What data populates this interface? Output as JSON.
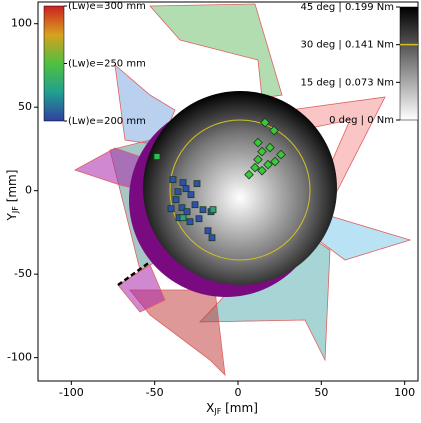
{
  "chart_data": {
    "type": "scatter",
    "xlabel": {
      "main": "X",
      "sub": "JF",
      "unit": " [mm]"
    },
    "ylabel": {
      "main": "Y",
      "sub": "JF",
      "unit": " [mm]"
    },
    "xlim": [
      -120,
      108
    ],
    "ylim": [
      -114,
      113
    ],
    "xticks": [
      -100,
      -50,
      0,
      50,
      100
    ],
    "yticks": [
      -100,
      -50,
      0,
      50,
      100
    ],
    "x": [
      -39,
      -33,
      -24.6,
      -36,
      -31.2,
      -28.2,
      -37.2,
      -33.6,
      -25.8,
      -21,
      -16.2,
      -30.6,
      -35.4,
      -28.8,
      -23.4,
      -18,
      -15.6,
      -40.2,
      16.2,
      21.6,
      12,
      19.2,
      25.8,
      14.4,
      12,
      18,
      22.2,
      10.2,
      14.4,
      6.6,
      -48.6,
      -33,
      -15
    ],
    "y": [
      6.6,
      4.8,
      4.2,
      -0.6,
      1.2,
      -2.4,
      -5.4,
      -10.2,
      -8.4,
      -11.4,
      -12.6,
      -12.6,
      -16.2,
      -18.6,
      -16.8,
      -24,
      -28.2,
      -10.8,
      40.8,
      36,
      28.8,
      25.8,
      21.6,
      23.4,
      18.6,
      15.6,
      17.4,
      13.8,
      12,
      9.6,
      20.4,
      -16.2,
      -11.4
    ],
    "colors": [
      "#3050b0",
      "#3050b0",
      "#3050b0",
      "#3050b0",
      "#3050b0",
      "#3050b0",
      "#3050b0",
      "#3050b0",
      "#3050b0",
      "#3050b0",
      "#3050b0",
      "#3050b0",
      "#3050b0",
      "#3050b0",
      "#3050b0",
      "#3050b0",
      "#3050b0",
      "#3050b0",
      "#3cc83c",
      "#3cc83c",
      "#3cc83c",
      "#3cc83c",
      "#3cc83c",
      "#3cc83c",
      "#3cc83c",
      "#3cc83c",
      "#3cc83c",
      "#3cc83c",
      "#3cc83c",
      "#3cc83c",
      "#2cbe50",
      "#2fa080",
      "#2fa080"
    ],
    "left_colorbar": {
      "lim": [
        200,
        300
      ],
      "ticks": [
        {
          "value": 300,
          "label": "(Lw)e=300 mm"
        },
        {
          "value": 250,
          "label": "(Lw)e=250 mm"
        },
        {
          "value": 200,
          "label": "(Lw)e=200 mm"
        }
      ]
    },
    "right_colorbar": {
      "lim": [
        0,
        45
      ],
      "highlight": 30,
      "highlight_color": "#d4c020",
      "ticks": [
        {
          "value": 45,
          "label": "45 deg | 0.199 Nm"
        },
        {
          "value": 30,
          "label": "30 deg | 0.141 Nm"
        },
        {
          "value": 15,
          "label": "15 deg | 0.073 Nm"
        },
        {
          "value": 0,
          "label": "0 deg | 0 Nm"
        }
      ]
    }
  }
}
